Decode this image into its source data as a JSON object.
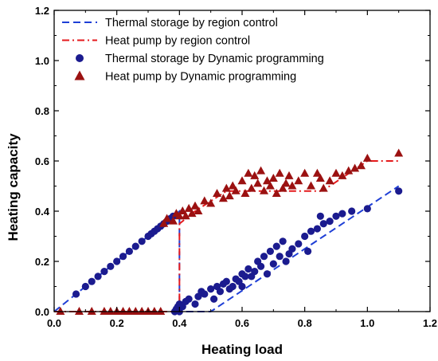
{
  "chart_data": {
    "type": "scatter",
    "xlabel": "Heating load",
    "ylabel": "Heating capacity",
    "xlim": [
      0,
      1.2
    ],
    "ylim": [
      0,
      1.2
    ],
    "xticks": [
      "0.0",
      "0.2",
      "0.4",
      "0.6",
      "0.8",
      "1.0",
      "1.2"
    ],
    "yticks": [
      "0.0",
      "0.2",
      "0.4",
      "0.6",
      "0.8",
      "1.0",
      "1.2"
    ],
    "grid": false,
    "legend_position": "top-left",
    "series": [
      {
        "name": "Thermal storage by region control",
        "kind": "dashed-line",
        "color": "#1f3fd6",
        "x": [
          0.0,
          0.4,
          0.4,
          0.5,
          1.1
        ],
        "y": [
          0.0,
          0.4,
          0.0,
          0.0,
          0.5
        ]
      },
      {
        "name": "Heat pump by region control",
        "kind": "dashdot-line",
        "color": "#e41a1c",
        "x": [
          0.0,
          0.4,
          0.4,
          0.45,
          0.55,
          0.85,
          0.88,
          1.0,
          1.1
        ],
        "y": [
          0.0,
          0.0,
          0.35,
          0.4,
          0.48,
          0.48,
          0.5,
          0.6,
          0.6
        ]
      },
      {
        "name": "Thermal storage by Dynamic programming",
        "kind": "circle-markers",
        "color": "#1b1b8f",
        "x": [
          0.07,
          0.1,
          0.12,
          0.14,
          0.16,
          0.18,
          0.2,
          0.22,
          0.24,
          0.26,
          0.28,
          0.3,
          0.31,
          0.32,
          0.33,
          0.34,
          0.35,
          0.36,
          0.37,
          0.38,
          0.385,
          0.39,
          0.395,
          0.4,
          0.4,
          0.41,
          0.42,
          0.43,
          0.45,
          0.46,
          0.47,
          0.48,
          0.5,
          0.51,
          0.52,
          0.53,
          0.54,
          0.55,
          0.56,
          0.57,
          0.58,
          0.59,
          0.6,
          0.6,
          0.61,
          0.62,
          0.63,
          0.64,
          0.65,
          0.66,
          0.67,
          0.68,
          0.69,
          0.7,
          0.71,
          0.72,
          0.73,
          0.74,
          0.75,
          0.76,
          0.78,
          0.8,
          0.81,
          0.82,
          0.84,
          0.85,
          0.86,
          0.88,
          0.9,
          0.92,
          0.95,
          1.0,
          1.1
        ],
        "y": [
          0.07,
          0.1,
          0.12,
          0.14,
          0.16,
          0.18,
          0.2,
          0.22,
          0.24,
          0.26,
          0.28,
          0.3,
          0.31,
          0.32,
          0.33,
          0.34,
          0.35,
          0.36,
          0.37,
          0.38,
          0.0,
          0.01,
          0.02,
          0.0,
          0.03,
          0.02,
          0.04,
          0.05,
          0.03,
          0.06,
          0.08,
          0.07,
          0.09,
          0.05,
          0.1,
          0.08,
          0.11,
          0.12,
          0.09,
          0.1,
          0.13,
          0.12,
          0.1,
          0.15,
          0.14,
          0.17,
          0.14,
          0.16,
          0.2,
          0.18,
          0.22,
          0.15,
          0.24,
          0.19,
          0.26,
          0.22,
          0.28,
          0.2,
          0.23,
          0.25,
          0.27,
          0.3,
          0.24,
          0.32,
          0.33,
          0.38,
          0.35,
          0.36,
          0.38,
          0.39,
          0.4,
          0.41,
          0.48
        ]
      },
      {
        "name": "Heat pump by Dynamic programming",
        "kind": "triangle-markers",
        "color": "#9b1111",
        "x": [
          0.02,
          0.08,
          0.12,
          0.16,
          0.18,
          0.2,
          0.22,
          0.24,
          0.26,
          0.28,
          0.3,
          0.32,
          0.34,
          0.35,
          0.36,
          0.38,
          0.39,
          0.4,
          0.41,
          0.42,
          0.43,
          0.44,
          0.45,
          0.46,
          0.48,
          0.5,
          0.52,
          0.54,
          0.55,
          0.56,
          0.57,
          0.58,
          0.6,
          0.61,
          0.62,
          0.63,
          0.64,
          0.65,
          0.66,
          0.67,
          0.68,
          0.69,
          0.7,
          0.71,
          0.72,
          0.73,
          0.74,
          0.75,
          0.76,
          0.78,
          0.8,
          0.82,
          0.84,
          0.85,
          0.86,
          0.88,
          0.9,
          0.92,
          0.94,
          0.96,
          0.98,
          1.0,
          1.1
        ],
        "y": [
          0.0,
          0.0,
          0.0,
          0.0,
          0.0,
          0.0,
          0.0,
          0.0,
          0.0,
          0.0,
          0.0,
          0.0,
          0.0,
          0.35,
          0.37,
          0.36,
          0.39,
          0.38,
          0.4,
          0.38,
          0.41,
          0.39,
          0.42,
          0.4,
          0.44,
          0.43,
          0.47,
          0.45,
          0.49,
          0.46,
          0.5,
          0.48,
          0.52,
          0.47,
          0.55,
          0.49,
          0.54,
          0.51,
          0.56,
          0.48,
          0.52,
          0.5,
          0.53,
          0.47,
          0.55,
          0.49,
          0.51,
          0.54,
          0.5,
          0.52,
          0.55,
          0.5,
          0.55,
          0.53,
          0.49,
          0.52,
          0.55,
          0.54,
          0.56,
          0.57,
          0.58,
          0.61,
          0.63
        ]
      }
    ]
  }
}
